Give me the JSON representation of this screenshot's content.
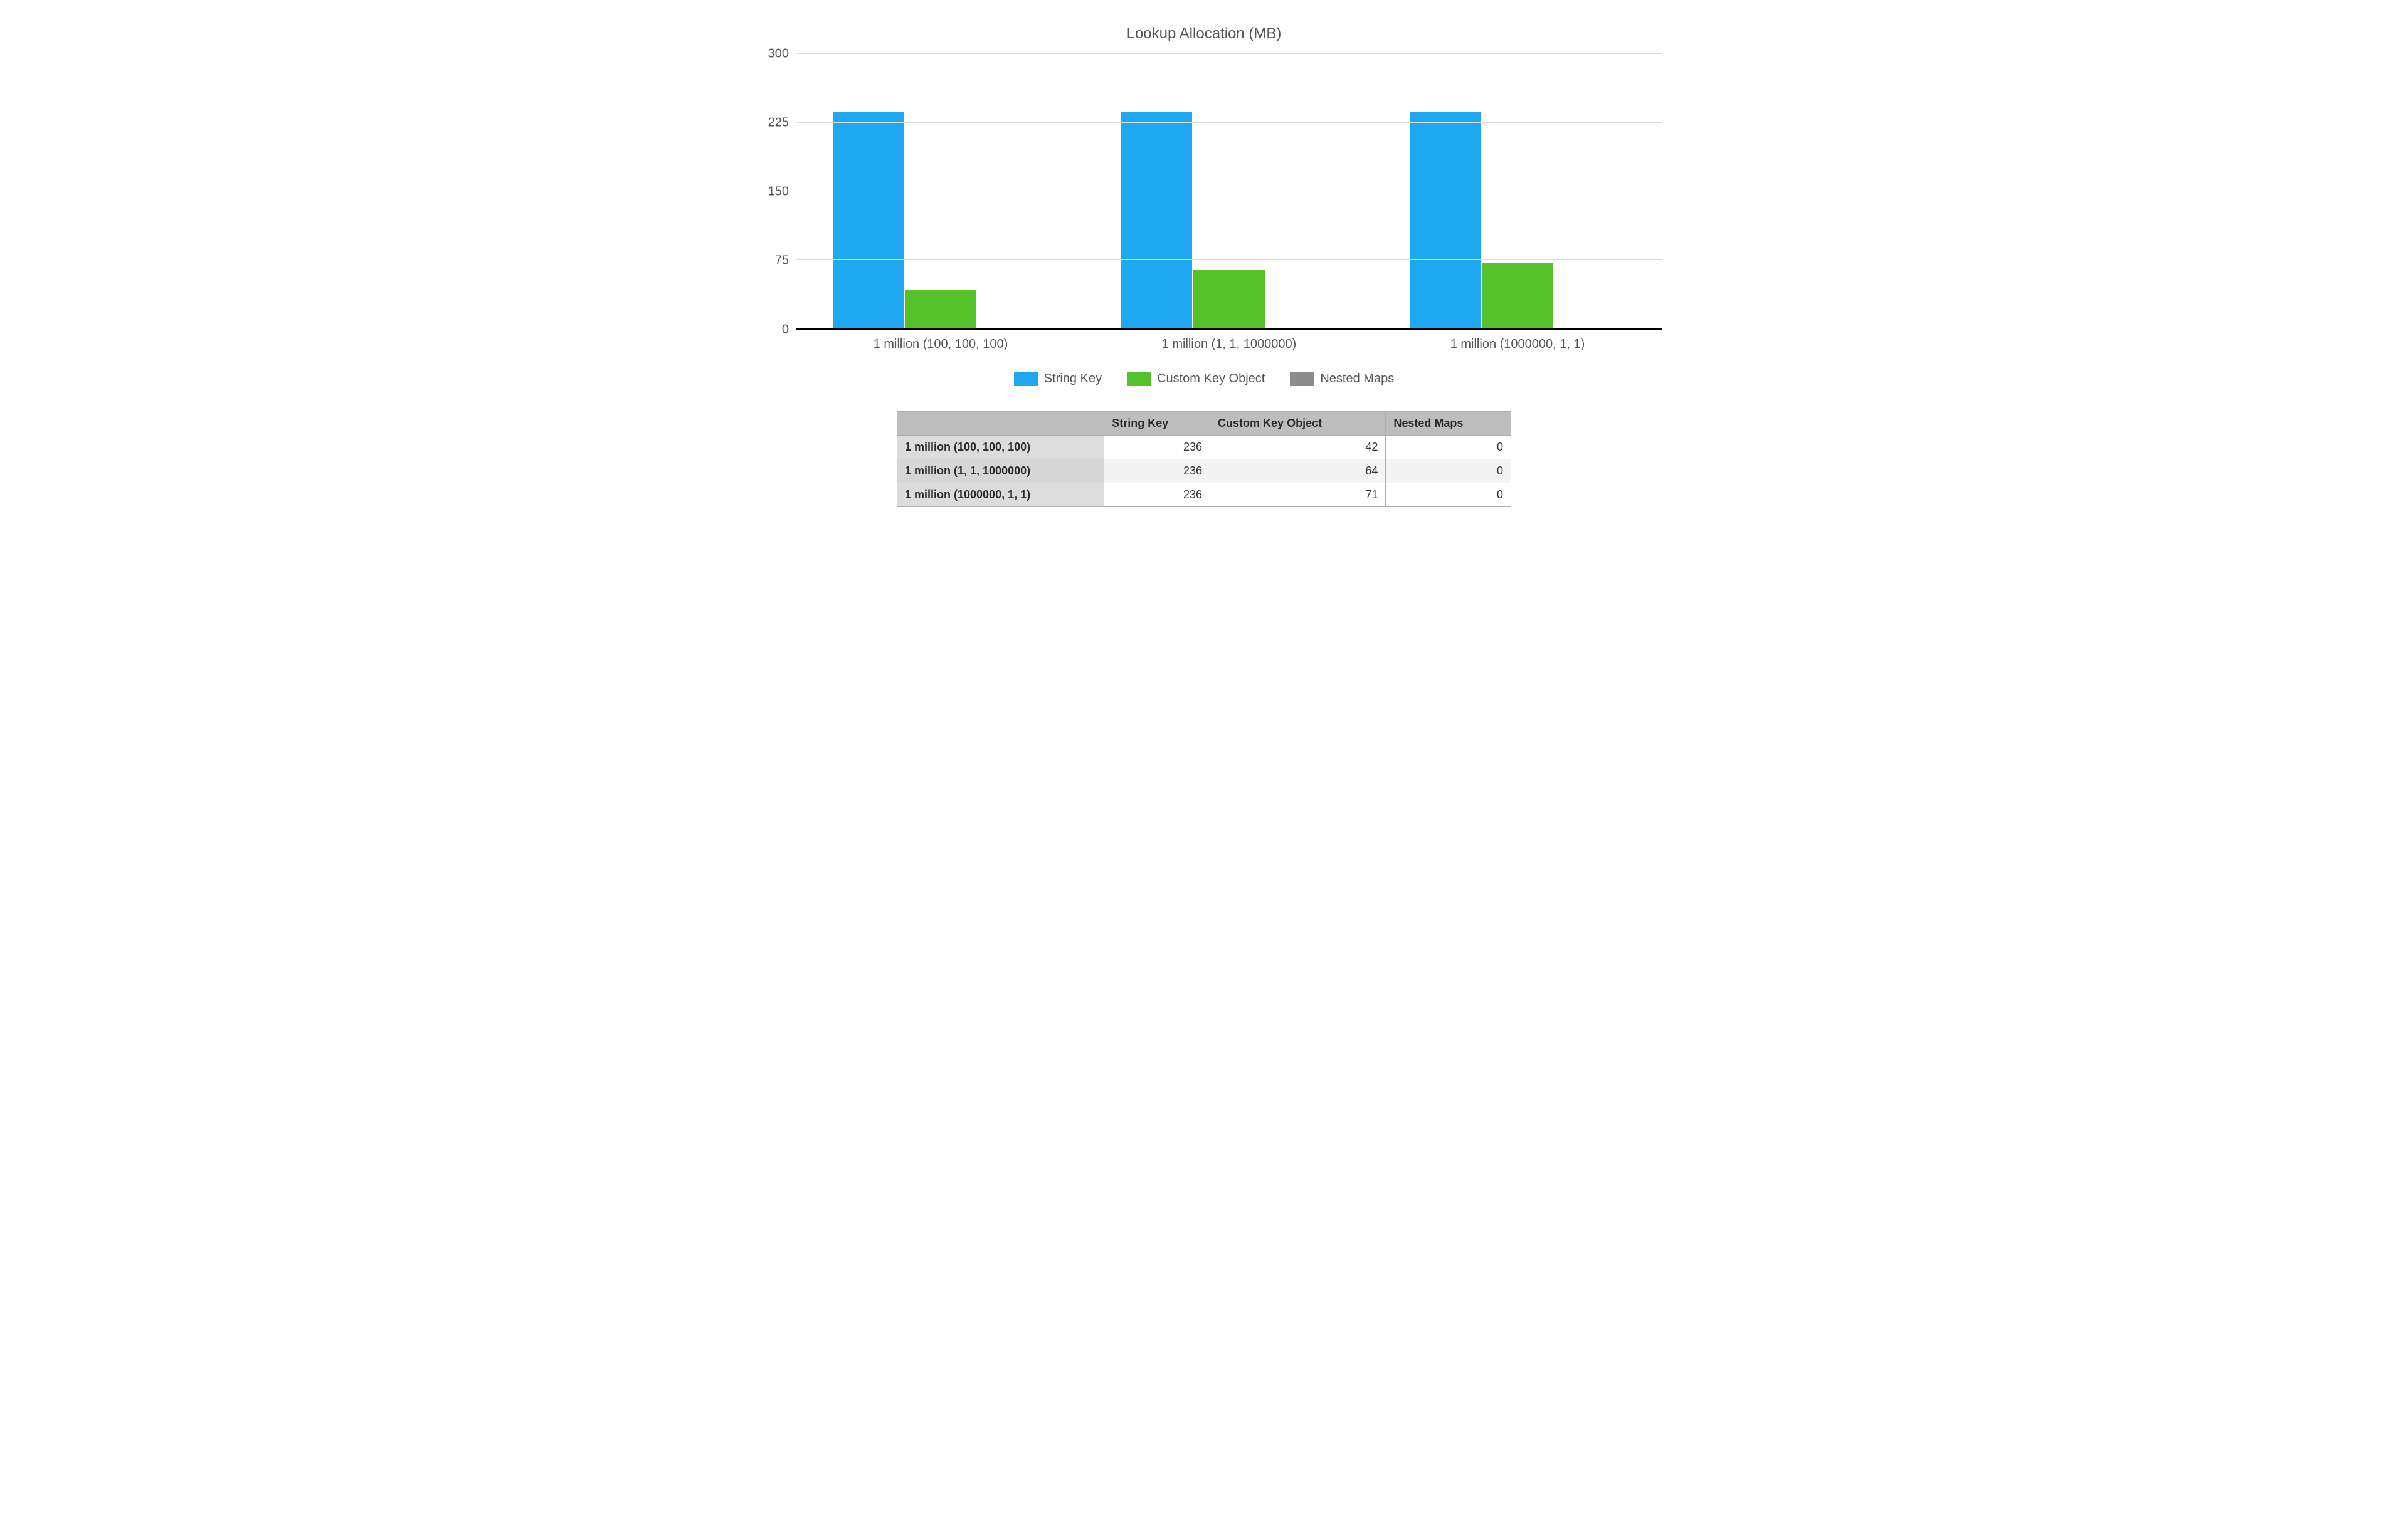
{
  "chart": {
    "type": "bar",
    "title": "Lookup Allocation (MB)",
    "title_fontsize": 24,
    "background_color": "#ffffff",
    "grid_color": "#dcdcdc",
    "axis_color": "#000000",
    "text_color": "#555555",
    "font_family": "Helvetica Neue",
    "ylim": [
      0,
      300
    ],
    "ytick_step": 75,
    "yticks": [
      0,
      75,
      150,
      225,
      300
    ],
    "bar_width": 0.28,
    "bar_gap": 0.02,
    "categories": [
      "1 million (100, 100, 100)",
      "1 million (1, 1, 1000000)",
      "1 million (1000000, 1, 1)"
    ],
    "series": [
      {
        "name": "String Key",
        "color": "#1ea8f2",
        "values": [
          236,
          236,
          236
        ]
      },
      {
        "name": "Custom Key Object",
        "color": "#56c22b",
        "values": [
          42,
          64,
          71
        ]
      },
      {
        "name": "Nested Maps",
        "color": "#8c8c8c",
        "values": [
          0,
          0,
          0
        ]
      }
    ],
    "legend_position": "bottom",
    "x_label_fontsize": 20,
    "y_label_fontsize": 20,
    "legend_fontsize": 20
  },
  "table": {
    "columns": [
      "",
      "String Key",
      "Custom Key Object",
      "Nested Maps"
    ],
    "rows": [
      {
        "label": "1 million (100, 100, 100)",
        "values": [
          236,
          42,
          0
        ]
      },
      {
        "label": "1 million (1, 1, 1000000)",
        "values": [
          236,
          64,
          0
        ]
      },
      {
        "label": "1 million (1000000, 1, 1)",
        "values": [
          236,
          71,
          0
        ]
      }
    ],
    "header_bg": "#bdbdbd",
    "row_header_bg": "#dcdcdc",
    "row_alt_bg": "#f4f4f4",
    "border_color": "#adadad",
    "fontsize": 18
  }
}
